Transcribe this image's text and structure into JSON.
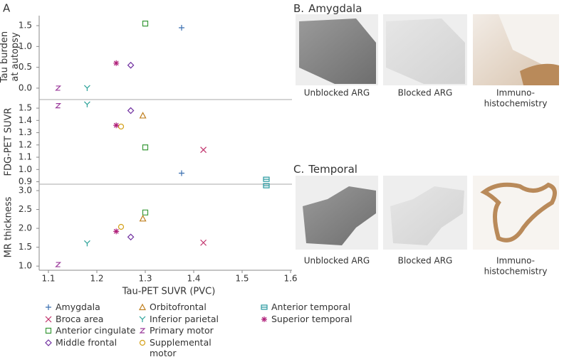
{
  "chart_data": {
    "type": "scatter",
    "panel_label": "A",
    "xlabel": "Tau-PET SUVR (PVC)",
    "xlim": [
      1.1,
      1.6
    ],
    "xticks": [
      1.1,
      1.2,
      1.3,
      1.4,
      1.5,
      1.6
    ],
    "panels": [
      {
        "ylabel": [
          "Tau burden",
          "at autopsy"
        ],
        "ylim": [
          -0.24,
          1.74
        ],
        "yticks": [
          {
            "value": 0,
            "label": "0.0"
          },
          0.5,
          {
            "value": 1,
            "label": "1.0"
          },
          1.5
        ]
      },
      {
        "ylabel": [
          "FDG-PET SUVR"
        ],
        "ylim": [
          0.88,
          1.57
        ],
        "yticks": [
          0.9,
          {
            "value": 1,
            "label": "1.0"
          },
          1.1,
          1.2,
          1.3,
          1.4,
          1.5
        ]
      },
      {
        "ylabel": [
          "MR thickness"
        ],
        "ylim": [
          0.89,
          3.17
        ],
        "yticks": [
          {
            "value": 1,
            "label": "1.0"
          },
          1.5,
          {
            "value": 2,
            "label": "2.0"
          },
          2.5,
          {
            "value": 3,
            "label": "3.0"
          }
        ]
      }
    ],
    "series": [
      {
        "name": "Amygdala",
        "color": "#3a6fb0",
        "marker": "plus",
        "x": 1.375,
        "values": [
          1.45,
          0.97,
          null
        ]
      },
      {
        "name": "Broca area",
        "color": "#c0306a",
        "marker": "cross",
        "x": 1.42,
        "values": [
          null,
          1.16,
          1.62
        ]
      },
      {
        "name": "Anterior cingulate",
        "color": "#3a9a3a",
        "marker": "square",
        "x": 1.3,
        "values": [
          1.55,
          1.18,
          2.42
        ]
      },
      {
        "name": "Middle frontal",
        "color": "#7030a0",
        "marker": "diamond",
        "x": 1.27,
        "values": [
          0.55,
          1.48,
          1.77
        ]
      },
      {
        "name": "Orbitofrontal",
        "color": "#c08020",
        "marker": "triangle",
        "x": 1.295,
        "values": [
          null,
          1.44,
          2.26
        ]
      },
      {
        "name": "Inferior parietal",
        "color": "#2aa198",
        "marker": "y",
        "x": 1.18,
        "values": [
          0,
          1.53,
          1.6
        ]
      },
      {
        "name": "Primary motor",
        "color": "#9b3a9b",
        "marker": "z",
        "x": 1.12,
        "values": [
          0,
          1.52,
          1.04
        ]
      },
      {
        "name": "Supplemental motor",
        "color": "#d4a017",
        "marker": "circle",
        "x": 1.25,
        "values": [
          null,
          1.35,
          2.04
        ]
      },
      {
        "name": "Anterior temporal",
        "color": "#2a9aa0",
        "marker": "dbox",
        "x": 1.55,
        "values": [
          null,
          0.92,
          3.13
        ]
      },
      {
        "name": "Superior temporal",
        "color": "#b0207a",
        "marker": "star",
        "x": 1.24,
        "values": [
          0.6,
          1.36,
          1.92
        ]
      }
    ]
  },
  "image_panels": [
    {
      "label": "B.",
      "title": "Amygdala",
      "captions": [
        [
          "Unblocked ARG"
        ],
        [
          "Blocked ARG"
        ],
        [
          "Immuno-",
          "histochemistry"
        ]
      ]
    },
    {
      "label": "C.",
      "title": "Temporal",
      "captions": [
        [
          "Unblocked ARG"
        ],
        [
          "Blocked ARG"
        ],
        [
          "Immuno-",
          "histochemistry"
        ]
      ]
    }
  ]
}
